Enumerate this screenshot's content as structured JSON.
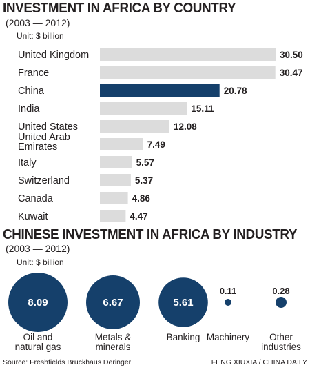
{
  "chart_data": [
    {
      "type": "bar",
      "orientation": "horizontal",
      "title": "INVESTMENT IN AFRICA BY COUNTRY",
      "subtitle": "(2003 — 2012)",
      "unit": "Unit: $ billion",
      "categories": [
        [
          "United Kingdom"
        ],
        [
          "France"
        ],
        [
          "China"
        ],
        [
          "India"
        ],
        [
          "United States"
        ],
        [
          "United Arab",
          "Emirates"
        ],
        [
          "Italy"
        ],
        [
          "Switzerland"
        ],
        [
          "Canada"
        ],
        [
          "Kuwait"
        ]
      ],
      "values": [
        30.5,
        30.47,
        20.78,
        15.11,
        12.08,
        7.49,
        5.57,
        5.37,
        4.86,
        4.47
      ],
      "value_labels": [
        "30.50",
        "30.47",
        "20.78",
        "15.11",
        "12.08",
        "7.49",
        "5.57",
        "5.37",
        "4.86",
        "4.47"
      ],
      "highlight": "China",
      "colors": {
        "bar": "#dcdcdc",
        "highlight": "#15406b"
      }
    },
    {
      "type": "bubble",
      "title": "CHINESE INVESTMENT IN AFRICA BY INDUSTRY",
      "subtitle": "(2003 — 2012)",
      "unit": "Unit: $ billion",
      "categories": [
        [
          "Oil and",
          "natural gas"
        ],
        [
          "Metals &",
          "minerals"
        ],
        [
          "Banking"
        ],
        [
          "Machinery"
        ],
        [
          "Other",
          "industries"
        ]
      ],
      "values": [
        8.09,
        6.67,
        5.61,
        0.11,
        0.28
      ],
      "value_labels": [
        "8.09",
        "6.67",
        "5.61",
        "0.11",
        "0.28"
      ],
      "colors": {
        "bubble": "#15406b",
        "inner_text": "#ffffff"
      }
    }
  ],
  "footer": {
    "source": "Source: Freshfields Bruckhaus Deringer",
    "credit": "FENG XIUXIA / CHINA DAILY"
  }
}
